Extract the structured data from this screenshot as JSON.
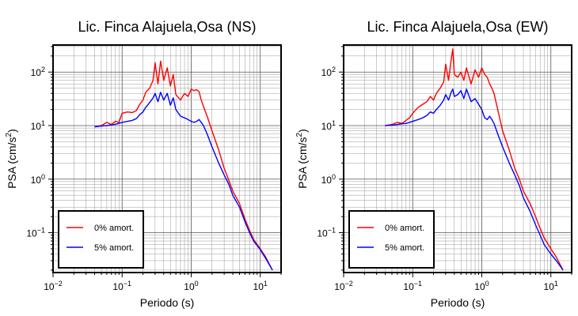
{
  "chart_data": [
    {
      "type": "line",
      "title": "Lic. Finca Alajuela,Osa (NS)",
      "xlabel": "Periodo (s)",
      "ylabel_base": "PSA (cm/s",
      "ylabel_sup": "2",
      "ylabel_end": ")",
      "xscale": "log",
      "yscale": "log",
      "xlim": [
        0.01,
        20
      ],
      "ylim": [
        0.018,
        320
      ],
      "grid": true,
      "legend_placement": "bottom-left",
      "x": [
        0.04,
        0.05,
        0.06,
        0.07,
        0.08,
        0.09,
        0.1,
        0.12,
        0.14,
        0.16,
        0.18,
        0.2,
        0.22,
        0.25,
        0.28,
        0.3,
        0.33,
        0.36,
        0.4,
        0.45,
        0.5,
        0.55,
        0.6,
        0.7,
        0.8,
        0.9,
        1.0,
        1.1,
        1.2,
        1.3,
        1.4,
        1.5,
        1.7,
        2.0,
        2.5,
        3.0,
        3.5,
        4.0,
        5.0,
        6.0,
        7.0,
        8.0,
        10.0,
        12.0,
        15.0
      ],
      "series": [
        {
          "name": "0% amort.",
          "color": "#ff0000",
          "values": [
            9.5,
            10,
            11.5,
            10.5,
            12,
            11.5,
            17,
            18,
            17.5,
            19,
            25,
            30,
            42,
            50,
            70,
            150,
            60,
            160,
            70,
            120,
            55,
            90,
            38,
            30,
            40,
            35,
            48,
            45,
            47,
            43,
            30,
            23,
            15,
            8,
            3.5,
            1.6,
            0.95,
            0.6,
            0.35,
            0.18,
            0.11,
            0.075,
            0.05,
            0.035,
            0.02
          ]
        },
        {
          "name": "5% amort.",
          "color": "#0000ff",
          "values": [
            9.5,
            9.8,
            10,
            10.3,
            10.6,
            11,
            11.5,
            12,
            12.5,
            13.5,
            16,
            18,
            22,
            27,
            33,
            40,
            28,
            42,
            30,
            40,
            24,
            33,
            20,
            15,
            14,
            13,
            12,
            11.5,
            12,
            13,
            11.5,
            10,
            7,
            4,
            2,
            1.2,
            0.8,
            0.5,
            0.3,
            0.16,
            0.1,
            0.07,
            0.048,
            0.033,
            0.02
          ]
        }
      ]
    },
    {
      "type": "line",
      "title": "Lic. Finca Alajuela,Osa (EW)",
      "xlabel": "Periodo (s)",
      "ylabel_base": "PSA (cm/s",
      "ylabel_sup": "2",
      "ylabel_end": ")",
      "xscale": "log",
      "yscale": "log",
      "xlim": [
        0.01,
        20
      ],
      "ylim": [
        0.018,
        320
      ],
      "grid": true,
      "legend_placement": "bottom-left",
      "x": [
        0.04,
        0.05,
        0.06,
        0.07,
        0.08,
        0.09,
        0.1,
        0.12,
        0.14,
        0.16,
        0.18,
        0.2,
        0.22,
        0.25,
        0.28,
        0.3,
        0.33,
        0.36,
        0.38,
        0.4,
        0.45,
        0.5,
        0.55,
        0.6,
        0.7,
        0.8,
        0.9,
        1.0,
        1.1,
        1.2,
        1.3,
        1.4,
        1.5,
        1.7,
        2.0,
        2.5,
        3.0,
        3.5,
        4.0,
        5.0,
        6.0,
        7.0,
        8.0,
        10.0,
        12.0,
        15.0
      ],
      "series": [
        {
          "name": "0% amort.",
          "color": "#ff0000",
          "values": [
            10,
            10.5,
            11.5,
            11,
            12.5,
            14,
            17,
            22,
            25,
            28,
            35,
            30,
            40,
            50,
            65,
            140,
            70,
            170,
            270,
            90,
            80,
            100,
            70,
            120,
            60,
            110,
            80,
            120,
            90,
            80,
            60,
            50,
            40,
            20,
            8,
            3.5,
            1.6,
            1.0,
            0.6,
            0.35,
            0.2,
            0.12,
            0.08,
            0.05,
            0.035,
            0.02
          ]
        },
        {
          "name": "5% amort.",
          "color": "#0000ff",
          "values": [
            10,
            10.2,
            10.5,
            10.8,
            11,
            11.5,
            12,
            13,
            14,
            15.5,
            18,
            17,
            20,
            24,
            30,
            38,
            30,
            42,
            48,
            35,
            38,
            45,
            32,
            48,
            28,
            32,
            25,
            20,
            14,
            13,
            15,
            13,
            11,
            7,
            4,
            2,
            1.2,
            0.75,
            0.45,
            0.25,
            0.14,
            0.09,
            0.06,
            0.04,
            0.03,
            0.02
          ]
        }
      ]
    }
  ]
}
